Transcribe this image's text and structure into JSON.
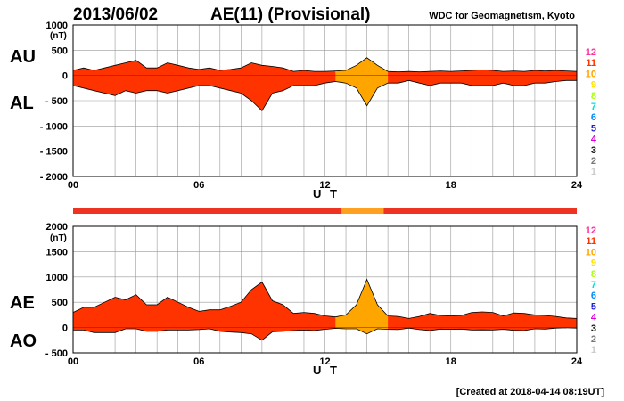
{
  "header": {
    "date": "2013/06/02",
    "title": "AE(11) (Provisional)",
    "org": "WDC for Geomagnetism, Kyoto"
  },
  "footer": {
    "created": "[Created at 2018-04-14 08:19UT]"
  },
  "colors": {
    "fill_red": "#ff3300",
    "fill_orange": "#ffa500",
    "bar_red": "#ee3322",
    "bar_orange": "#ffa020",
    "grid": "#999999"
  },
  "activity_scale": [
    {
      "label": "12",
      "color": "#ff3399"
    },
    {
      "label": "11",
      "color": "#ff3300"
    },
    {
      "label": "10",
      "color": "#ffa500"
    },
    {
      "label": "9",
      "color": "#ffe000"
    },
    {
      "label": "8",
      "color": "#aaff00"
    },
    {
      "label": "7",
      "color": "#00e0e0"
    },
    {
      "label": "6",
      "color": "#0088ff"
    },
    {
      "label": "5",
      "color": "#2222cc"
    },
    {
      "label": "4",
      "color": "#dd00dd"
    },
    {
      "label": "3",
      "color": "#111111"
    },
    {
      "label": "2",
      "color": "#777777"
    },
    {
      "label": "1",
      "color": "#cccccc"
    }
  ],
  "activity_bar": [
    {
      "from": 0,
      "to": 12.8,
      "level": "11"
    },
    {
      "from": 12.8,
      "to": 14.8,
      "level": "10"
    },
    {
      "from": 14.8,
      "to": 24,
      "level": "11"
    }
  ],
  "chart_data": [
    {
      "type": "area",
      "name_labels": {
        "upper": "AU",
        "lower": "AL"
      },
      "unit": "(nT)",
      "xlabel": "U T",
      "xlim": [
        0,
        24
      ],
      "ylim": [
        -2000,
        1000
      ],
      "x_ticks": [
        "00",
        "06",
        "12",
        "18",
        "24"
      ],
      "y_ticks": [
        "1000",
        "500",
        "0",
        "- 500",
        "- 1000",
        "- 1500",
        "- 2000"
      ],
      "grid": true,
      "x": [
        0,
        0.5,
        1,
        1.5,
        2,
        2.5,
        3,
        3.5,
        4,
        4.5,
        5,
        5.5,
        6,
        6.5,
        7,
        7.5,
        8,
        8.5,
        9,
        9.5,
        10,
        10.5,
        11,
        11.5,
        12,
        12.5,
        13,
        13.5,
        14,
        14.5,
        15,
        15.5,
        16,
        16.5,
        17,
        17.5,
        18,
        18.5,
        19,
        19.5,
        20,
        20.5,
        21,
        21.5,
        22,
        22.5,
        23,
        23.5,
        24
      ],
      "series": [
        {
          "name": "AU",
          "values": [
            100,
            150,
            100,
            150,
            200,
            250,
            300,
            150,
            150,
            250,
            200,
            150,
            120,
            150,
            100,
            120,
            150,
            250,
            200,
            180,
            150,
            80,
            100,
            80,
            80,
            90,
            100,
            200,
            350,
            200,
            80,
            70,
            80,
            70,
            80,
            90,
            80,
            90,
            100,
            110,
            100,
            80,
            90,
            80,
            100,
            90,
            100,
            90,
            80
          ]
        },
        {
          "name": "AL",
          "values": [
            -200,
            -250,
            -300,
            -350,
            -400,
            -300,
            -350,
            -300,
            -300,
            -350,
            -300,
            -250,
            -200,
            -200,
            -250,
            -300,
            -350,
            -500,
            -700,
            -350,
            -300,
            -200,
            -200,
            -200,
            -150,
            -120,
            -150,
            -250,
            -600,
            -250,
            -150,
            -150,
            -100,
            -150,
            -200,
            -150,
            -150,
            -150,
            -200,
            -200,
            -200,
            -150,
            -200,
            -200,
            -150,
            -150,
            -120,
            -100,
            -100
          ]
        }
      ]
    },
    {
      "type": "area",
      "name_labels": {
        "upper": "AE",
        "lower": "AO"
      },
      "unit": "(nT)",
      "xlabel": "U T",
      "xlim": [
        0,
        24
      ],
      "ylim": [
        -500,
        2000
      ],
      "x_ticks": [
        "00",
        "06",
        "12",
        "18",
        "24"
      ],
      "y_ticks": [
        "2000",
        "1500",
        "1000",
        "500",
        "0",
        "- 500"
      ],
      "grid": true,
      "x": [
        0,
        0.5,
        1,
        1.5,
        2,
        2.5,
        3,
        3.5,
        4,
        4.5,
        5,
        5.5,
        6,
        6.5,
        7,
        7.5,
        8,
        8.5,
        9,
        9.5,
        10,
        10.5,
        11,
        11.5,
        12,
        12.5,
        13,
        13.5,
        14,
        14.5,
        15,
        15.5,
        16,
        16.5,
        17,
        17.5,
        18,
        18.5,
        19,
        19.5,
        20,
        20.5,
        21,
        21.5,
        22,
        22.5,
        23,
        23.5,
        24
      ],
      "series": [
        {
          "name": "AE",
          "values": [
            300,
            400,
            400,
            500,
            600,
            550,
            650,
            450,
            450,
            600,
            500,
            400,
            320,
            350,
            350,
            420,
            500,
            750,
            900,
            530,
            450,
            280,
            300,
            280,
            230,
            210,
            250,
            450,
            950,
            450,
            230,
            220,
            180,
            220,
            280,
            240,
            230,
            240,
            300,
            310,
            300,
            230,
            290,
            280,
            250,
            240,
            220,
            190,
            180
          ]
        },
        {
          "name": "AO",
          "values": [
            -50,
            -50,
            -100,
            -100,
            -100,
            -25,
            -25,
            -75,
            -75,
            -50,
            -50,
            -50,
            -40,
            -25,
            -75,
            -90,
            -100,
            -125,
            -250,
            -85,
            -75,
            -60,
            -50,
            -60,
            -35,
            -15,
            -25,
            -25,
            -125,
            -25,
            -35,
            -40,
            -10,
            -40,
            -60,
            -30,
            -35,
            -30,
            -50,
            -45,
            -50,
            -35,
            -55,
            -60,
            -25,
            -30,
            -10,
            -5,
            -10
          ]
        }
      ]
    }
  ]
}
